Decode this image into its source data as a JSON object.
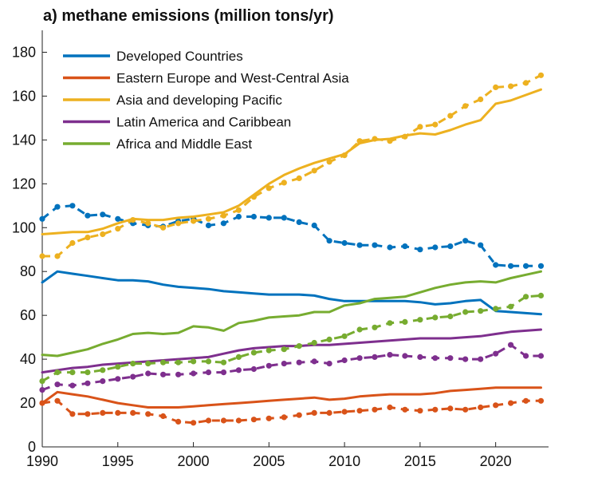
{
  "chart_data": {
    "type": "line",
    "title": "a) methane emissions (million tons/yr)",
    "xlabel": "",
    "ylabel": "",
    "xlim": [
      1990,
      2023.5
    ],
    "ylim": [
      0,
      190
    ],
    "xticks": [
      1990,
      1995,
      2000,
      2005,
      2010,
      2015,
      2020
    ],
    "yticks": [
      0,
      20,
      40,
      60,
      80,
      100,
      120,
      140,
      160,
      180
    ],
    "legend_position": "top-left",
    "notes": "Solid lines = first dataset; dashed lines with dot markers = second dataset (unlabeled in legend).",
    "series": [
      {
        "name": "Developed Countries",
        "color": "#0072BD",
        "solid": {
          "x": [
            1990,
            1991,
            1992,
            1993,
            1994,
            1995,
            1996,
            1997,
            1998,
            1999,
            2000,
            2001,
            2002,
            2003,
            2004,
            2005,
            2006,
            2007,
            2008,
            2009,
            2010,
            2011,
            2012,
            2013,
            2014,
            2015,
            2016,
            2017,
            2018,
            2019,
            2020,
            2021,
            2022,
            2023
          ],
          "y": [
            75,
            80,
            79,
            78,
            77,
            76,
            76,
            75.5,
            74,
            73,
            72.5,
            72,
            71,
            70.5,
            70,
            69.5,
            69.5,
            69.5,
            69,
            67.5,
            66.5,
            66.5,
            66.5,
            66.5,
            66.5,
            66,
            65,
            65.5,
            66.5,
            67,
            62,
            61.5,
            61,
            60.5
          ]
        },
        "dashed": {
          "x": [
            1990,
            1991,
            1992,
            1993,
            1994,
            1995,
            1996,
            1997,
            1998,
            1999,
            2000,
            2001,
            2002,
            2003,
            2004,
            2005,
            2006,
            2007,
            2008,
            2009,
            2010,
            2011,
            2012,
            2013,
            2014,
            2015,
            2016,
            2017,
            2018,
            2019,
            2020,
            2021,
            2022,
            2023
          ],
          "y": [
            104,
            109.5,
            110,
            105.5,
            106,
            104,
            102,
            101,
            100.5,
            103,
            104,
            101,
            102,
            105,
            105,
            104.5,
            104.5,
            102.5,
            101,
            94,
            93,
            92,
            92,
            91,
            91.5,
            90,
            91,
            91.5,
            94,
            92,
            83,
            82.5,
            82.5,
            82.5
          ]
        }
      },
      {
        "name": "Eastern Europe and West-Central Asia",
        "color": "#D95319",
        "solid": {
          "x": [
            1990,
            1991,
            1992,
            1993,
            1994,
            1995,
            1996,
            1997,
            1998,
            1999,
            2000,
            2001,
            2002,
            2003,
            2004,
            2005,
            2006,
            2007,
            2008,
            2009,
            2010,
            2011,
            2012,
            2013,
            2014,
            2015,
            2016,
            2017,
            2018,
            2019,
            2020,
            2021,
            2022,
            2023
          ],
          "y": [
            20,
            25,
            24,
            23,
            21.5,
            20,
            19,
            18,
            18,
            18,
            18.5,
            19,
            19.5,
            20,
            20.5,
            21,
            21.5,
            22,
            22.5,
            21.5,
            22,
            23,
            23.5,
            24,
            24,
            24,
            24.5,
            25.5,
            26,
            26.5,
            27,
            27,
            27,
            27
          ]
        },
        "dashed": {
          "x": [
            1990,
            1991,
            1992,
            1993,
            1994,
            1995,
            1996,
            1997,
            1998,
            1999,
            2000,
            2001,
            2002,
            2003,
            2004,
            2005,
            2006,
            2007,
            2008,
            2009,
            2010,
            2011,
            2012,
            2013,
            2014,
            2015,
            2016,
            2017,
            2018,
            2019,
            2020,
            2021,
            2022,
            2023
          ],
          "y": [
            20,
            21,
            15,
            15,
            15.5,
            15.5,
            15.5,
            15,
            14,
            11.5,
            11,
            12,
            12,
            12,
            12.5,
            13,
            13.5,
            14.5,
            15.5,
            15.5,
            16,
            16.5,
            17,
            18,
            17,
            16.5,
            17,
            17.5,
            17,
            18,
            19,
            20,
            21,
            21
          ]
        }
      },
      {
        "name": "Asia and developing Pacific",
        "color": "#EDB120",
        "solid": {
          "x": [
            1990,
            1991,
            1992,
            1993,
            1994,
            1995,
            1996,
            1997,
            1998,
            1999,
            2000,
            2001,
            2002,
            2003,
            2004,
            2005,
            2006,
            2007,
            2008,
            2009,
            2010,
            2011,
            2012,
            2013,
            2014,
            2015,
            2016,
            2017,
            2018,
            2019,
            2020,
            2021,
            2022,
            2023
          ],
          "y": [
            97,
            97.5,
            98,
            98,
            99.5,
            102,
            104,
            103.5,
            103.5,
            104.5,
            105,
            106,
            107,
            110,
            115,
            120,
            124,
            127,
            129.5,
            131.5,
            133.5,
            138.5,
            140,
            140.5,
            142,
            143,
            142.5,
            144.5,
            147,
            149,
            156.5,
            158,
            160.5,
            163
          ]
        },
        "dashed": {
          "x": [
            1990,
            1991,
            1992,
            1993,
            1994,
            1995,
            1996,
            1997,
            1998,
            1999,
            2000,
            2001,
            2002,
            2003,
            2004,
            2005,
            2006,
            2007,
            2008,
            2009,
            2010,
            2011,
            2012,
            2013,
            2014,
            2015,
            2016,
            2017,
            2018,
            2019,
            2020,
            2021,
            2022,
            2023
          ],
          "y": [
            87,
            87,
            93,
            95.5,
            97,
            99.5,
            103.5,
            102,
            100,
            102,
            103,
            104,
            105.5,
            108,
            114,
            118,
            120.5,
            122.5,
            126,
            130,
            133,
            139.5,
            140.5,
            139.5,
            141.5,
            146,
            147,
            151,
            155.5,
            158.5,
            164,
            164.5,
            166,
            169.5
          ]
        }
      },
      {
        "name": "Latin America and Caribbean",
        "color": "#7E2F8E",
        "solid": {
          "x": [
            1990,
            1991,
            1992,
            1993,
            1994,
            1995,
            1996,
            1997,
            1998,
            1999,
            2000,
            2001,
            2002,
            2003,
            2004,
            2005,
            2006,
            2007,
            2008,
            2009,
            2010,
            2011,
            2012,
            2013,
            2014,
            2015,
            2016,
            2017,
            2018,
            2019,
            2020,
            2021,
            2022,
            2023
          ],
          "y": [
            34,
            35,
            36,
            36.5,
            37.5,
            38,
            38.5,
            39,
            39.5,
            40,
            40.5,
            41,
            42.5,
            44,
            45,
            45.5,
            46,
            46,
            46.5,
            46.5,
            47,
            47.5,
            48,
            48.5,
            49,
            49.5,
            49.5,
            49.5,
            50,
            50.5,
            51.5,
            52.5,
            53,
            53.5
          ]
        },
        "dashed": {
          "x": [
            1990,
            1991,
            1992,
            1993,
            1994,
            1995,
            1996,
            1997,
            1998,
            1999,
            2000,
            2001,
            2002,
            2003,
            2004,
            2005,
            2006,
            2007,
            2008,
            2009,
            2010,
            2011,
            2012,
            2013,
            2014,
            2015,
            2016,
            2017,
            2018,
            2019,
            2020,
            2021,
            2022,
            2023
          ],
          "y": [
            26,
            28.5,
            28,
            29,
            30,
            31,
            32,
            33.5,
            33,
            33,
            33.5,
            34,
            34,
            35,
            35.5,
            37,
            38,
            38.5,
            39,
            38,
            39.5,
            40.5,
            41,
            42,
            41.5,
            41,
            40.5,
            40.5,
            40,
            40,
            42.5,
            46.5,
            41.5,
            41.5
          ]
        }
      },
      {
        "name": "Africa and Middle East",
        "color": "#77AC30",
        "solid": {
          "x": [
            1990,
            1991,
            1992,
            1993,
            1994,
            1995,
            1996,
            1997,
            1998,
            1999,
            2000,
            2001,
            2002,
            2003,
            2004,
            2005,
            2006,
            2007,
            2008,
            2009,
            2010,
            2011,
            2012,
            2013,
            2014,
            2015,
            2016,
            2017,
            2018,
            2019,
            2020,
            2021,
            2022,
            2023
          ],
          "y": [
            42,
            41.5,
            43,
            44.5,
            47,
            49,
            51.5,
            52,
            51.5,
            52,
            55,
            54.5,
            53,
            56.5,
            57.5,
            59,
            59.5,
            60,
            61.5,
            61.5,
            64.5,
            65.5,
            67.5,
            68,
            68.5,
            70.5,
            72.5,
            74,
            75,
            75.5,
            75,
            77,
            78.5,
            80
          ]
        },
        "dashed": {
          "x": [
            1990,
            1991,
            1992,
            1993,
            1994,
            1995,
            1996,
            1997,
            1998,
            1999,
            2000,
            2001,
            2002,
            2003,
            2004,
            2005,
            2006,
            2007,
            2008,
            2009,
            2010,
            2011,
            2012,
            2013,
            2014,
            2015,
            2016,
            2017,
            2018,
            2019,
            2020,
            2021,
            2022,
            2023
          ],
          "y": [
            30,
            34,
            34,
            34,
            35,
            36.5,
            38,
            38,
            38.5,
            38.5,
            39,
            39,
            38.5,
            41,
            43,
            44,
            44.5,
            46,
            47.5,
            49,
            50.5,
            53.5,
            54.5,
            56.5,
            57,
            58,
            59,
            59.5,
            61.5,
            62,
            63,
            64,
            68.5,
            69
          ]
        }
      }
    ]
  }
}
